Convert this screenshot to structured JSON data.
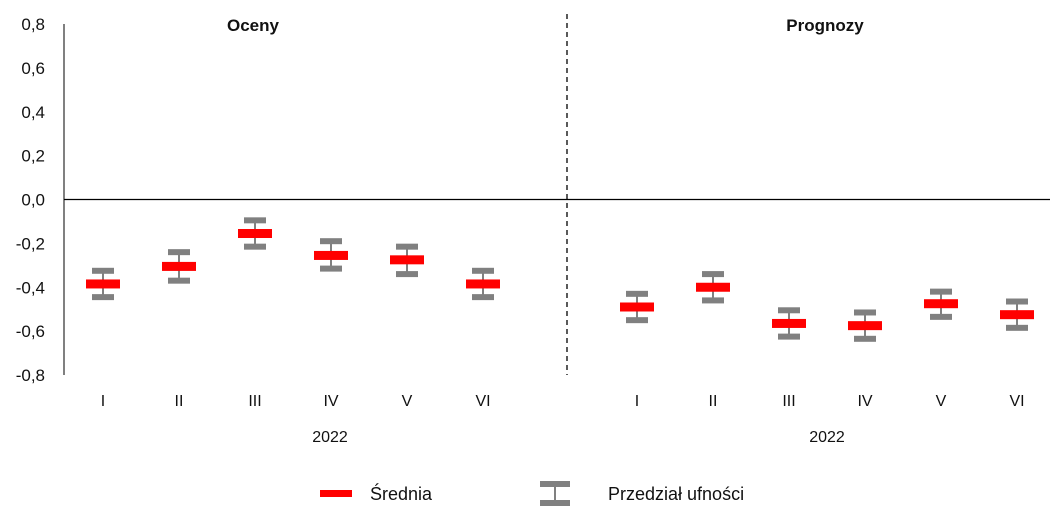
{
  "chart_data": {
    "type": "errorbar",
    "ylim": [
      -0.8,
      0.8
    ],
    "yticks": [
      "0,8",
      "0,6",
      "0,4",
      "0,2",
      "0,0",
      "-0,2",
      "-0,4",
      "-0,6",
      "-0,8"
    ],
    "ytick_values": [
      0.8,
      0.6,
      0.4,
      0.2,
      0.0,
      -0.2,
      -0.4,
      -0.6,
      -0.8
    ],
    "panels": [
      {
        "title": "Oceny",
        "year": "2022",
        "categories": [
          "I",
          "II",
          "III",
          "IV",
          "V",
          "VI"
        ],
        "mean": [
          -0.385,
          -0.305,
          -0.155,
          -0.255,
          -0.275,
          -0.385
        ],
        "ci_low": [
          -0.445,
          -0.37,
          -0.215,
          -0.315,
          -0.34,
          -0.445
        ],
        "ci_high": [
          -0.325,
          -0.24,
          -0.095,
          -0.19,
          -0.215,
          -0.325
        ]
      },
      {
        "title": "Prognozy",
        "year": "2022",
        "categories": [
          "I",
          "II",
          "III",
          "IV",
          "V",
          "VI"
        ],
        "mean": [
          -0.49,
          -0.4,
          -0.565,
          -0.575,
          -0.475,
          -0.525
        ],
        "ci_low": [
          -0.55,
          -0.46,
          -0.625,
          -0.635,
          -0.535,
          -0.585
        ],
        "ci_high": [
          -0.43,
          -0.34,
          -0.505,
          -0.515,
          -0.42,
          -0.465
        ]
      }
    ],
    "legend": {
      "mean_label": "Średnia",
      "ci_label": "Przedział ufności",
      "position": "bottom"
    },
    "colors": {
      "mean": "#ff0000",
      "ci": "#808080",
      "axis": "#000000"
    }
  }
}
